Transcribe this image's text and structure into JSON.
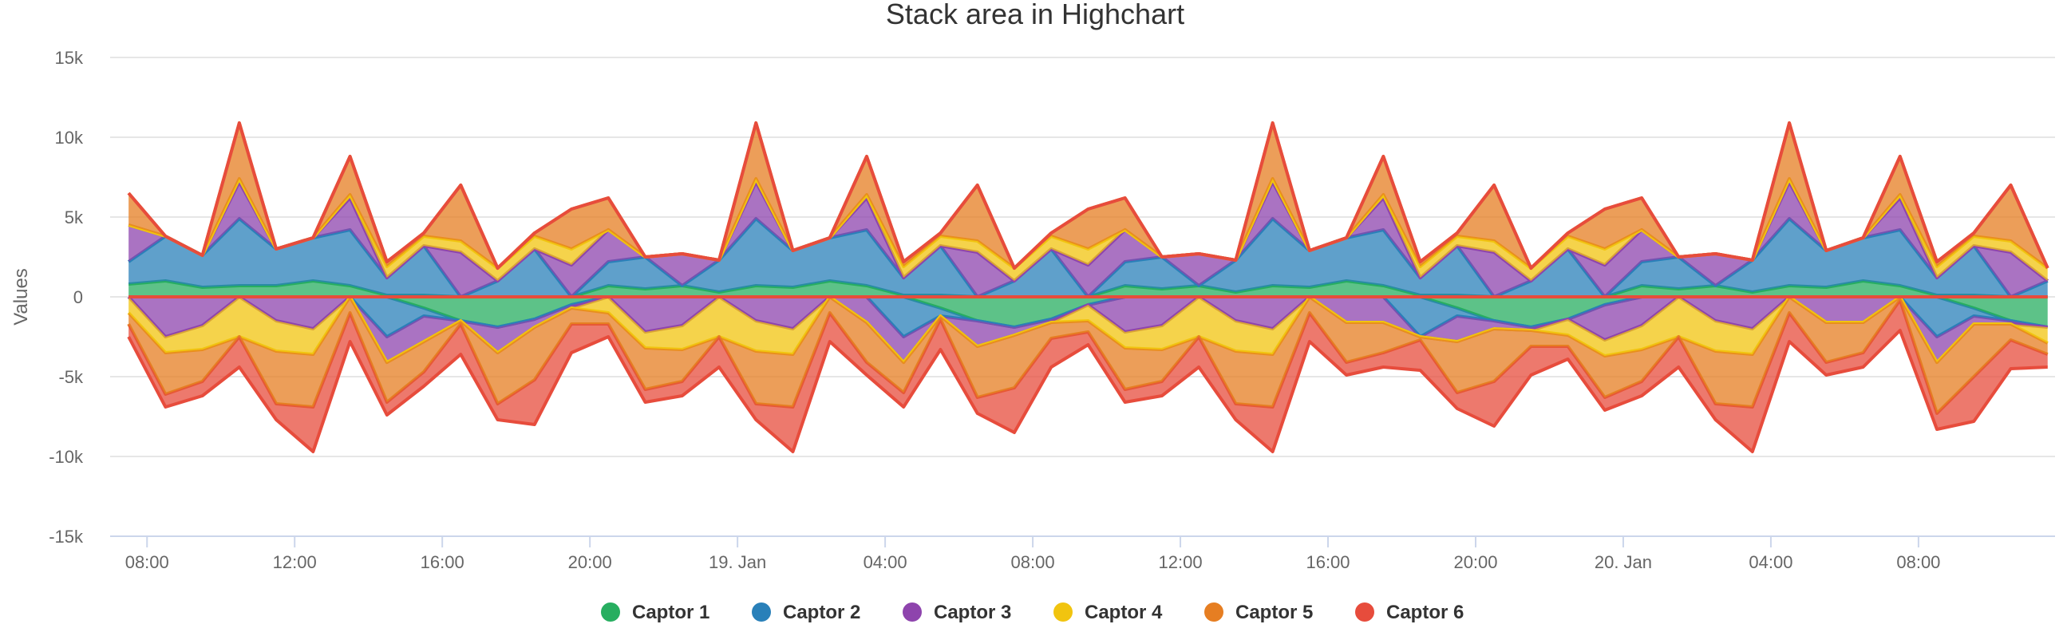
{
  "chart_data": {
    "type": "area",
    "stacking": "normal",
    "title": "Stack area in Highchart",
    "ylabel": "Values",
    "ylim": [
      -15000,
      15000
    ],
    "yticks": [
      15000,
      10000,
      5000,
      0,
      -5000,
      -10000,
      -15000
    ],
    "ytick_labels": [
      "15k",
      "10k",
      "5k",
      "0",
      "-5k",
      "-10k",
      "-15k"
    ],
    "xtick_labels": [
      "08:00",
      "12:00",
      "16:00",
      "20:00",
      "19. Jan",
      "04:00",
      "08:00",
      "12:00",
      "16:00",
      "20:00",
      "20. Jan",
      "04:00",
      "08:00"
    ],
    "xticks_hours": [
      8,
      12,
      16,
      20,
      24,
      28,
      32,
      36,
      40,
      44,
      48,
      52,
      56
    ],
    "xlim_hours": [
      7,
      59.7
    ],
    "x_hours": [
      7.5,
      8.5,
      9.5,
      10.5,
      11.5,
      12.5,
      13.5,
      14.5,
      15.5,
      16.5,
      17.5,
      18.5,
      19.5,
      20.5,
      21.5,
      22.5,
      23.5,
      24.5,
      25.5,
      26.5,
      27.5,
      28.5,
      29.5,
      30.5,
      31.5,
      32.5,
      33.5,
      34.5,
      35.5,
      36.5,
      37.5,
      38.5,
      39.5,
      40.5,
      41.5,
      42.5,
      43.5,
      44.5,
      45.5,
      46.5,
      47.5,
      48.5,
      49.5,
      50.5,
      51.5,
      52.5,
      53.5,
      54.5,
      55.5,
      56.5,
      57.5,
      58.5,
      59.5
    ],
    "legend_position": "bottom-center",
    "grid": true,
    "series": [
      {
        "name": "Captor 1",
        "color": "#27ae60",
        "values": [
          800,
          1000,
          600,
          700,
          700,
          1000,
          700,
          100,
          100,
          0,
          0,
          0,
          0,
          700,
          500,
          700,
          300,
          700,
          600,
          1000,
          700,
          100,
          100,
          0,
          0,
          0,
          0,
          700,
          500,
          700,
          300,
          700,
          600,
          1000,
          700,
          100,
          100,
          0,
          0,
          0,
          0,
          700,
          500,
          700,
          300,
          700,
          600,
          1000,
          700,
          100,
          100,
          0,
          0
        ]
      },
      {
        "name": "Captor 2",
        "color": "#2980b9",
        "values": [
          1400,
          2800,
          2000,
          4200,
          2300,
          2700,
          3500,
          1100,
          3100,
          0,
          1000,
          3000,
          0,
          1500,
          2000,
          0,
          2000,
          4200,
          2300,
          2700,
          3500,
          1100,
          3100,
          0,
          1000,
          3000,
          0,
          1500,
          2000,
          0,
          2000,
          4200,
          2300,
          2700,
          3500,
          1100,
          3100,
          0,
          1000,
          3000,
          0,
          1500,
          2000,
          0,
          2000,
          4200,
          2300,
          2700,
          3500,
          1100,
          3100,
          0,
          1000
        ]
      },
      {
        "name": "Captor 3",
        "color": "#8e44ad",
        "values": [
          2300,
          0,
          0,
          2300,
          0,
          0,
          2000,
          0,
          0,
          2800,
          0,
          0,
          2000,
          2000,
          0,
          2000,
          0,
          2300,
          0,
          0,
          2000,
          0,
          0,
          2800,
          0,
          0,
          2000,
          2000,
          0,
          2000,
          0,
          2300,
          0,
          0,
          2000,
          0,
          0,
          2800,
          0,
          0,
          2000,
          2000,
          0,
          2000,
          0,
          2300,
          0,
          0,
          2000,
          0,
          0,
          2800,
          0
        ]
      },
      {
        "name": "Captor 4",
        "color": "#f1c40f",
        "values": [
          0,
          0,
          0,
          200,
          0,
          0,
          200,
          700,
          600,
          700,
          800,
          800,
          1000,
          0,
          0,
          0,
          0,
          200,
          0,
          0,
          200,
          700,
          600,
          700,
          800,
          800,
          1000,
          0,
          0,
          0,
          0,
          200,
          0,
          0,
          200,
          700,
          600,
          700,
          800,
          800,
          1000,
          0,
          0,
          0,
          0,
          200,
          0,
          0,
          200,
          700,
          600,
          700,
          800
        ]
      },
      {
        "name": "Captor 5",
        "color": "#e67e22",
        "values": [
          2000,
          0,
          0,
          3500,
          0,
          0,
          2400,
          300,
          200,
          3500,
          0,
          200,
          2500,
          2000,
          0,
          0,
          0,
          3500,
          0,
          0,
          2400,
          300,
          200,
          3500,
          0,
          200,
          2500,
          2000,
          0,
          0,
          0,
          3500,
          0,
          0,
          2400,
          300,
          200,
          3500,
          0,
          200,
          2500,
          2000,
          0,
          0,
          0,
          3500,
          0,
          0,
          2400,
          300,
          200,
          3500,
          0
        ]
      },
      {
        "name": "Captor 6",
        "color": "#e74c3c",
        "values": [
          0,
          0,
          0,
          0,
          0,
          0,
          0,
          0,
          0,
          0,
          0,
          0,
          0,
          0,
          0,
          0,
          0,
          0,
          0,
          0,
          0,
          0,
          0,
          0,
          0,
          0,
          0,
          0,
          0,
          0,
          0,
          0,
          0,
          0,
          0,
          0,
          0,
          0,
          0,
          0,
          0,
          0,
          0,
          0,
          0,
          0,
          0,
          0,
          0,
          0,
          0,
          0,
          0
        ]
      }
    ],
    "negative_series": [
      {
        "name": "Captor 1",
        "color": "#27ae60",
        "values": [
          0,
          0,
          0,
          0,
          0,
          0,
          0,
          0,
          700,
          1500,
          1900,
          1400,
          500,
          0,
          0,
          0,
          0,
          0,
          0,
          0,
          0,
          0,
          700,
          1500,
          1900,
          1400,
          500,
          0,
          0,
          0,
          0,
          0,
          0,
          0,
          0,
          0,
          700,
          1500,
          1900,
          1400,
          500,
          0,
          0,
          0,
          0,
          0,
          0,
          0,
          0,
          0,
          700,
          1500,
          1900
        ]
      },
      {
        "name": "Captor 2",
        "color": "#2980b9",
        "values": [
          0,
          0,
          0,
          0,
          0,
          0,
          0,
          2500,
          500,
          0,
          0,
          0,
          0,
          0,
          0,
          0,
          0,
          0,
          0,
          0,
          0,
          2500,
          500,
          0,
          0,
          0,
          0,
          0,
          0,
          0,
          0,
          0,
          0,
          0,
          0,
          2500,
          500,
          0,
          0,
          0,
          0,
          0,
          0,
          0,
          0,
          0,
          0,
          0,
          0,
          2500,
          500,
          0,
          0
        ]
      },
      {
        "name": "Captor 3",
        "color": "#8e44ad",
        "values": [
          0,
          2500,
          1800,
          0,
          1500,
          2000,
          0,
          1600,
          1600,
          0,
          1600,
          500,
          200,
          0,
          2200,
          1800,
          0,
          1500,
          2000,
          0,
          1600,
          1600,
          0,
          1600,
          500,
          200,
          0,
          2200,
          1800,
          0,
          1500,
          2000,
          0,
          1600,
          1600,
          0,
          1600,
          500,
          200,
          0,
          2200,
          1800,
          0,
          1500,
          2000,
          0,
          1600,
          1600,
          0,
          1600,
          500,
          200,
          0
        ]
      },
      {
        "name": "Captor 4",
        "color": "#f1c40f",
        "values": [
          1000,
          1000,
          1500,
          2500,
          1900,
          1600,
          0,
          0,
          0,
          0,
          0,
          0,
          0,
          1000,
          1000,
          1500,
          2500,
          1900,
          1600,
          0,
          0,
          0,
          0,
          0,
          0,
          0,
          1000,
          1000,
          1500,
          2500,
          1900,
          1600,
          0,
          0,
          0,
          0,
          0,
          0,
          0,
          1000,
          1000,
          1500,
          2500,
          1900,
          1600,
          0,
          0,
          0,
          0,
          0,
          0,
          0,
          1000
        ]
      },
      {
        "name": "Captor 5",
        "color": "#e67e22",
        "values": [
          700,
          2600,
          2000,
          0,
          3300,
          3300,
          1000,
          2500,
          1900,
          200,
          3200,
          3300,
          1000,
          700,
          2600,
          2000,
          0,
          3300,
          3300,
          1000,
          2500,
          1900,
          200,
          3200,
          3300,
          1000,
          700,
          2600,
          2000,
          0,
          3300,
          3300,
          1000,
          2500,
          1900,
          200,
          3200,
          3300,
          1000,
          700,
          2600,
          2000,
          0,
          3300,
          3300,
          1000,
          2500,
          1900,
          200,
          3200,
          3300,
          1000,
          700
        ]
      },
      {
        "name": "Captor 6",
        "color": "#e74c3c",
        "values": [
          800,
          800,
          900,
          1900,
          1000,
          2800,
          1800,
          800,
          900,
          1900,
          1000,
          2800,
          1800,
          800,
          800,
          900,
          1900,
          1000,
          2800,
          1800,
          800,
          900,
          1900,
          1000,
          2800,
          1800,
          800,
          800,
          900,
          1900,
          1000,
          2800,
          1800,
          800,
          900,
          1900,
          1000,
          2800,
          1800,
          800,
          800,
          900,
          1900,
          1000,
          2800,
          1800,
          800,
          900,
          1900,
          1000,
          2800,
          1800,
          800
        ]
      }
    ]
  }
}
